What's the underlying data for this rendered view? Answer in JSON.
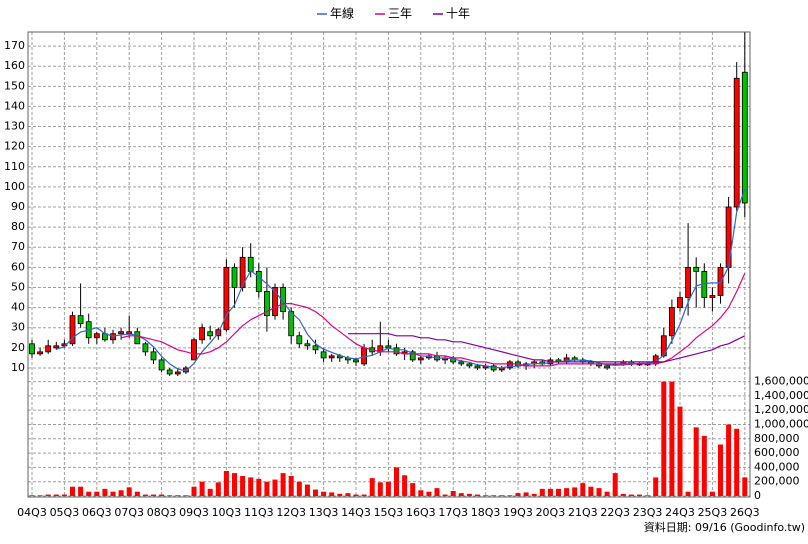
{
  "chart_data": {
    "type": "candlestick",
    "legend_position": "top",
    "grid": true,
    "source": "資料日期: 09/16 (Goodinfo.tw)",
    "categories": [
      "04Q3",
      null,
      null,
      null,
      "05Q3",
      null,
      null,
      null,
      "06Q3",
      null,
      null,
      null,
      "07Q3",
      null,
      null,
      null,
      "08Q3",
      null,
      null,
      null,
      "09Q3",
      null,
      null,
      null,
      "10Q3",
      null,
      null,
      null,
      "11Q3",
      null,
      null,
      null,
      "12Q3",
      null,
      null,
      null,
      "13Q3",
      null,
      null,
      null,
      "14Q3",
      null,
      null,
      null,
      "15Q3",
      null,
      null,
      null,
      "16Q3",
      null,
      null,
      null,
      "17Q3",
      null,
      null,
      null,
      "18Q3",
      null,
      null,
      null,
      "19Q3",
      null,
      null,
      null,
      "20Q3",
      null,
      null,
      null,
      "21Q3",
      null,
      null,
      null,
      "22Q3",
      null,
      null,
      null,
      "23Q3",
      null,
      null,
      null,
      "24Q3",
      null,
      null,
      null,
      "25Q3",
      null,
      null,
      null,
      "26Q3"
    ],
    "open": [
      22,
      17,
      18,
      20,
      21,
      22,
      36,
      33,
      25,
      27,
      24,
      27,
      27,
      28,
      22,
      18,
      14,
      9,
      7,
      8,
      14,
      24,
      28,
      26,
      29,
      60,
      50,
      65,
      58,
      48,
      36,
      50,
      38,
      26,
      22,
      21,
      18,
      15,
      16,
      15,
      14,
      12,
      20,
      18,
      21,
      20,
      17,
      18,
      14,
      15,
      16,
      14,
      15,
      13,
      12,
      11,
      10,
      11,
      9,
      10,
      13,
      11,
      12,
      13,
      12,
      14,
      13,
      15,
      14,
      13,
      12,
      11,
      12,
      12,
      13,
      12,
      12,
      12,
      16,
      26,
      40,
      45,
      60,
      58,
      45,
      46,
      60,
      90,
      157
    ],
    "high": [
      24,
      20,
      24,
      23,
      24,
      38,
      52,
      37,
      28,
      30,
      29,
      30,
      36,
      30,
      23,
      20,
      15,
      10,
      10,
      11,
      25,
      32,
      31,
      30,
      64,
      62,
      70,
      72,
      62,
      60,
      52,
      52,
      40,
      28,
      24,
      24,
      20,
      17,
      17,
      16,
      15,
      22,
      24,
      33,
      24,
      22,
      20,
      19,
      16,
      17,
      18,
      16,
      16,
      14,
      13,
      12,
      12,
      12,
      11,
      14,
      14,
      13,
      14,
      14,
      15,
      15,
      17,
      16,
      15,
      14,
      13,
      12,
      13,
      14,
      14,
      13,
      13,
      17,
      30,
      44,
      48,
      82,
      65,
      62,
      50,
      62,
      95,
      162,
      177
    ],
    "low": [
      15,
      16,
      17,
      19,
      20,
      21,
      30,
      22,
      22,
      23,
      22,
      24,
      25,
      22,
      16,
      12,
      8,
      6,
      6,
      7,
      14,
      22,
      24,
      24,
      28,
      40,
      48,
      55,
      45,
      28,
      34,
      34,
      22,
      20,
      19,
      17,
      13,
      13,
      13,
      12,
      11,
      11,
      16,
      16,
      18,
      16,
      14,
      13,
      12,
      14,
      13,
      12,
      12,
      11,
      10,
      9,
      9,
      8,
      8,
      9,
      10,
      9,
      10,
      11,
      11,
      12,
      12,
      13,
      12,
      11,
      10,
      9,
      11,
      11,
      11,
      11,
      11,
      11,
      15,
      22,
      38,
      36,
      40,
      40,
      38,
      42,
      52,
      88,
      85
    ],
    "close": [
      17,
      18,
      21,
      21,
      22,
      36,
      32,
      25,
      27,
      24,
      27,
      28,
      28,
      22,
      18,
      14,
      9,
      7,
      8,
      10,
      24,
      30,
      26,
      29,
      60,
      50,
      65,
      58,
      48,
      36,
      50,
      38,
      26,
      22,
      21,
      19,
      15,
      16,
      15,
      14,
      13,
      20,
      18,
      21,
      20,
      17,
      18,
      14,
      15,
      16,
      14,
      15,
      13,
      12,
      11,
      10,
      11,
      9,
      10,
      13,
      11,
      12,
      13,
      12,
      14,
      13,
      15,
      14,
      13,
      12,
      11,
      10,
      12,
      13,
      12,
      12,
      12,
      16,
      26,
      40,
      45,
      60,
      58,
      45,
      46,
      60,
      90,
      154,
      92
    ],
    "up_color": "#ff0000",
    "down_color": "#00c000",
    "ylim": [
      5,
      177
    ],
    "yticks": [
      10,
      20,
      30,
      40,
      50,
      60,
      70,
      80,
      90,
      100,
      110,
      120,
      130,
      140,
      150,
      160,
      170
    ],
    "series": [
      {
        "name": "年線",
        "color": "#3366cc",
        "values": [
          null,
          null,
          null,
          19.3,
          20.5,
          25,
          27.8,
          28.8,
          30,
          27,
          25.8,
          26.5,
          26.8,
          26.3,
          24,
          20.5,
          15.8,
          12,
          9.5,
          8.5,
          12.3,
          18,
          22.5,
          27.3,
          36.3,
          41.3,
          51,
          58.3,
          55.3,
          51.8,
          48,
          43,
          37.5,
          34,
          26.8,
          22,
          19.3,
          17.8,
          16.3,
          15,
          14.5,
          15.5,
          16.3,
          18,
          19.8,
          19,
          19,
          17.3,
          16,
          15.8,
          14.8,
          15,
          14.5,
          13.5,
          12.8,
          11.5,
          11,
          10.3,
          10,
          10.8,
          10.8,
          11.5,
          12.3,
          12,
          12.8,
          13,
          13.5,
          14,
          13.8,
          13.5,
          12.5,
          11.5,
          11.3,
          11.5,
          11.8,
          12.3,
          12.3,
          13,
          16.5,
          23.5,
          31.8,
          42.8,
          50.8,
          52,
          52.3,
          52.3,
          60.3,
          87.5,
          99
        ]
      },
      {
        "name": "三年",
        "color": "#e0007f",
        "values": [
          null,
          null,
          null,
          null,
          null,
          null,
          null,
          null,
          null,
          null,
          null,
          25,
          26,
          26,
          25,
          24,
          23,
          21,
          19,
          18,
          17,
          17,
          18,
          20,
          23,
          27,
          31,
          34,
          36,
          38,
          40,
          42,
          42,
          41,
          40,
          38,
          35,
          31,
          28,
          25,
          22,
          20,
          19,
          18,
          18,
          18,
          17,
          17,
          17,
          17,
          16,
          16,
          15,
          15,
          14,
          13,
          13,
          12,
          12,
          12,
          12,
          11,
          11,
          11,
          11,
          12,
          12,
          12,
          12,
          12,
          12,
          12,
          12,
          12,
          12,
          12,
          12,
          12,
          13,
          15,
          18,
          21,
          25,
          28,
          31,
          35,
          40,
          48,
          57
        ]
      },
      {
        "name": "十年",
        "color": "#8000a0",
        "values": [
          null,
          null,
          null,
          null,
          null,
          null,
          null,
          null,
          null,
          null,
          null,
          null,
          null,
          null,
          null,
          null,
          null,
          null,
          null,
          null,
          null,
          null,
          null,
          null,
          null,
          null,
          null,
          null,
          null,
          null,
          null,
          null,
          null,
          null,
          null,
          null,
          null,
          null,
          null,
          27,
          27,
          27,
          27,
          27,
          27,
          26,
          26,
          26,
          25,
          25,
          24,
          24,
          23,
          23,
          22,
          21,
          20,
          19,
          18,
          17,
          16,
          15,
          14,
          14,
          13,
          13,
          13,
          13,
          13,
          13,
          13,
          13,
          13,
          13,
          13,
          13,
          13,
          13,
          13,
          14,
          15,
          16,
          17,
          18,
          19,
          21,
          22,
          24,
          26
        ]
      }
    ],
    "volume": {
      "color": "#ff0000",
      "values": [
        10000,
        10000,
        20000,
        20000,
        20000,
        130000,
        130000,
        60000,
        60000,
        100000,
        60000,
        80000,
        120000,
        60000,
        20000,
        20000,
        20000,
        10000,
        10000,
        10000,
        130000,
        200000,
        100000,
        190000,
        350000,
        320000,
        280000,
        260000,
        240000,
        200000,
        230000,
        320000,
        280000,
        200000,
        160000,
        90000,
        60000,
        50000,
        30000,
        40000,
        20000,
        20000,
        250000,
        190000,
        200000,
        400000,
        290000,
        180000,
        80000,
        60000,
        110000,
        20000,
        70000,
        40000,
        30000,
        20000,
        10000,
        10000,
        10000,
        10000,
        40000,
        50000,
        30000,
        100000,
        100000,
        100000,
        110000,
        120000,
        180000,
        130000,
        110000,
        60000,
        320000,
        30000,
        20000,
        20000,
        10000,
        260000,
        1600000,
        1600000,
        1250000,
        60000,
        960000,
        840000,
        60000,
        720000,
        1000000,
        940000,
        260000
      ],
      "ylim": [
        0,
        1650000
      ],
      "yticks": [
        0,
        {
          "value": 200000,
          "label": "200,000"
        },
        {
          "value": 400000,
          "label": "400,000"
        },
        {
          "value": 600000,
          "label": "600,000"
        },
        {
          "value": 800000,
          "label": "800,000"
        },
        {
          "value": 1000000,
          "label": "1,000,000"
        },
        {
          "value": 1200000,
          "label": "1,200,000"
        },
        {
          "value": 1400000,
          "label": "1,400,000"
        },
        {
          "value": 1600000,
          "label": "1,600,000"
        }
      ]
    }
  }
}
